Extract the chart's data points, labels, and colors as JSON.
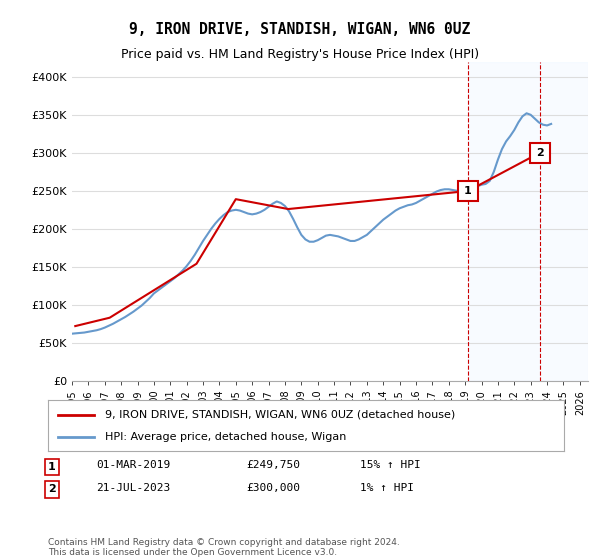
{
  "title": "9, IRON DRIVE, STANDISH, WIGAN, WN6 0UZ",
  "subtitle": "Price paid vs. HM Land Registry's House Price Index (HPI)",
  "ylabel": "",
  "xlim_left": 1995.0,
  "xlim_right": 2026.5,
  "ylim_bottom": 0,
  "ylim_top": 420000,
  "yticks": [
    0,
    50000,
    100000,
    150000,
    200000,
    250000,
    300000,
    350000,
    400000
  ],
  "ytick_labels": [
    "£0",
    "£50K",
    "£100K",
    "£150K",
    "£200K",
    "£250K",
    "£300K",
    "£350K",
    "£400K"
  ],
  "xticks": [
    1995,
    1996,
    1997,
    1998,
    1999,
    2000,
    2001,
    2002,
    2003,
    2004,
    2005,
    2006,
    2007,
    2008,
    2009,
    2010,
    2011,
    2012,
    2013,
    2014,
    2015,
    2016,
    2017,
    2018,
    2019,
    2020,
    2021,
    2022,
    2023,
    2024,
    2025,
    2026
  ],
  "hpi_x": [
    1995.0,
    1995.25,
    1995.5,
    1995.75,
    1996.0,
    1996.25,
    1996.5,
    1996.75,
    1997.0,
    1997.25,
    1997.5,
    1997.75,
    1998.0,
    1998.25,
    1998.5,
    1998.75,
    1999.0,
    1999.25,
    1999.5,
    1999.75,
    2000.0,
    2000.25,
    2000.5,
    2000.75,
    2001.0,
    2001.25,
    2001.5,
    2001.75,
    2002.0,
    2002.25,
    2002.5,
    2002.75,
    2003.0,
    2003.25,
    2003.5,
    2003.75,
    2004.0,
    2004.25,
    2004.5,
    2004.75,
    2005.0,
    2005.25,
    2005.5,
    2005.75,
    2006.0,
    2006.25,
    2006.5,
    2006.75,
    2007.0,
    2007.25,
    2007.5,
    2007.75,
    2008.0,
    2008.25,
    2008.5,
    2008.75,
    2009.0,
    2009.25,
    2009.5,
    2009.75,
    2010.0,
    2010.25,
    2010.5,
    2010.75,
    2011.0,
    2011.25,
    2011.5,
    2011.75,
    2012.0,
    2012.25,
    2012.5,
    2012.75,
    2013.0,
    2013.25,
    2013.5,
    2013.75,
    2014.0,
    2014.25,
    2014.5,
    2014.75,
    2015.0,
    2015.25,
    2015.5,
    2015.75,
    2016.0,
    2016.25,
    2016.5,
    2016.75,
    2017.0,
    2017.25,
    2017.5,
    2017.75,
    2018.0,
    2018.25,
    2018.5,
    2018.75,
    2019.0,
    2019.25,
    2019.5,
    2019.75,
    2020.0,
    2020.25,
    2020.5,
    2020.75,
    2021.0,
    2021.25,
    2021.5,
    2021.75,
    2022.0,
    2022.25,
    2022.5,
    2022.75,
    2023.0,
    2023.25,
    2023.5,
    2023.75,
    2024.0,
    2024.25
  ],
  "hpi_y": [
    62000,
    62500,
    63000,
    63500,
    64500,
    65500,
    66500,
    68000,
    70000,
    72500,
    75000,
    78000,
    81000,
    84000,
    87500,
    91000,
    95000,
    99000,
    104000,
    109000,
    115000,
    119000,
    123000,
    127000,
    131000,
    135000,
    140000,
    145000,
    151000,
    158000,
    166000,
    175000,
    184000,
    192000,
    200000,
    207000,
    213000,
    218000,
    222000,
    224000,
    225000,
    224000,
    222000,
    220000,
    219000,
    220000,
    222000,
    225000,
    229000,
    233000,
    236000,
    234000,
    230000,
    223000,
    213000,
    202000,
    192000,
    186000,
    183000,
    183000,
    185000,
    188000,
    191000,
    192000,
    191000,
    190000,
    188000,
    186000,
    184000,
    184000,
    186000,
    189000,
    192000,
    197000,
    202000,
    207000,
    212000,
    216000,
    220000,
    224000,
    227000,
    229000,
    231000,
    232000,
    234000,
    237000,
    240000,
    243000,
    246000,
    249000,
    251000,
    252000,
    252000,
    251000,
    250000,
    250000,
    251000,
    252000,
    254000,
    256000,
    258000,
    259000,
    263000,
    275000,
    291000,
    305000,
    315000,
    322000,
    330000,
    340000,
    348000,
    352000,
    350000,
    345000,
    340000,
    337000,
    336000,
    338000
  ],
  "price_x": [
    1995.2,
    1997.3,
    2002.6,
    2005.0,
    2008.2,
    2019.17,
    2023.55
  ],
  "price_y": [
    72000,
    83000,
    154000,
    239000,
    226000,
    249750,
    300000
  ],
  "hpi_color": "#6699cc",
  "price_color": "#cc0000",
  "marker1_x": 2019.17,
  "marker1_y": 249750,
  "marker2_x": 2023.55,
  "marker2_y": 300000,
  "bg_shade_x1": 2019.17,
  "bg_shade_x2": 2026.5,
  "shade_color": "#ddeeff",
  "grid_color": "#dddddd",
  "legend_line1": "9, IRON DRIVE, STANDISH, WIGAN, WN6 0UZ (detached house)",
  "legend_line2": "HPI: Average price, detached house, Wigan",
  "trans1_num": "1",
  "trans1_date": "01-MAR-2019",
  "trans1_price": "£249,750",
  "trans1_hpi": "15% ↑ HPI",
  "trans2_num": "2",
  "trans2_date": "21-JUL-2023",
  "trans2_price": "£300,000",
  "trans2_hpi": "1% ↑ HPI",
  "footer": "Contains HM Land Registry data © Crown copyright and database right 2024.\nThis data is licensed under the Open Government Licence v3.0.",
  "background_color": "#ffffff"
}
